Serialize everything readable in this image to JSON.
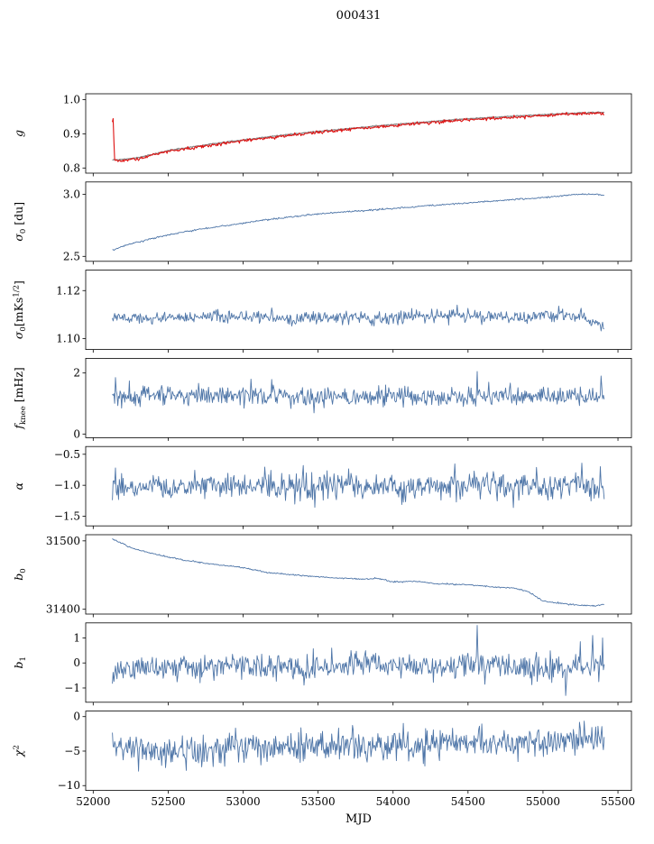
{
  "title": "000431",
  "xlabel": "MJD",
  "colors": {
    "line": "#4f76a8",
    "fit": "#dd1111",
    "model": "#8a8a8a",
    "axis": "#000000"
  },
  "x_axis": {
    "lim": [
      51950,
      55590
    ],
    "ticks": [
      52000,
      52500,
      53000,
      53500,
      54000,
      54500,
      55000,
      55500
    ]
  },
  "chart_data": [
    {
      "type": "line",
      "name": "g",
      "ylabel": "g",
      "ylabel_parts": [
        {
          "t": "g",
          "italic": true
        }
      ],
      "ylim": [
        0.785,
        1.017
      ],
      "yticks": [
        {
          "v": 1.0,
          "label": "1.0"
        },
        {
          "v": 0.9,
          "label": "0.9"
        },
        {
          "v": 0.8,
          "label": "0.8"
        }
      ],
      "series": [
        {
          "name": "model",
          "kind": "trend",
          "color": "#8a8a8a",
          "width": 1.3,
          "noise": 0.0008,
          "seed": 2,
          "points": [
            [
              52140,
              0.823
            ],
            [
              52300,
              0.83
            ],
            [
              52500,
              0.851
            ],
            [
              52800,
              0.871
            ],
            [
              53000,
              0.882
            ],
            [
              53300,
              0.898
            ],
            [
              53600,
              0.911
            ],
            [
              53900,
              0.923
            ],
            [
              54200,
              0.934
            ],
            [
              54500,
              0.944
            ],
            [
              54700,
              0.949
            ],
            [
              55000,
              0.956
            ],
            [
              55200,
              0.96
            ],
            [
              55380,
              0.963
            ],
            [
              55408,
              0.963
            ]
          ]
        },
        {
          "name": "fit",
          "kind": "trend",
          "color": "#dd1111",
          "width": 1.1,
          "noise": 0.0022,
          "seed": 7,
          "points": [
            [
              52128,
              0.93
            ],
            [
              52132,
              0.957
            ],
            [
              52137,
              0.9
            ],
            [
              52142,
              0.828
            ],
            [
              52160,
              0.821
            ],
            [
              52300,
              0.827
            ],
            [
              52500,
              0.848
            ],
            [
              52800,
              0.868
            ],
            [
              53000,
              0.879
            ],
            [
              53300,
              0.895
            ],
            [
              53600,
              0.908
            ],
            [
              53900,
              0.92
            ],
            [
              54200,
              0.931
            ],
            [
              54500,
              0.941
            ],
            [
              54700,
              0.946
            ],
            [
              55000,
              0.953
            ],
            [
              55200,
              0.958
            ],
            [
              55380,
              0.961
            ],
            [
              55408,
              0.954
            ]
          ]
        }
      ]
    },
    {
      "type": "line",
      "name": "sigma0-du",
      "ylabel": "σ0 [du]",
      "ylabel_parts": [
        {
          "t": "σ",
          "italic": true
        },
        {
          "t": "0",
          "sub": true
        },
        {
          "t": " [du]"
        }
      ],
      "ylim": [
        2.46,
        3.1
      ],
      "yticks": [
        {
          "v": 3.0,
          "label": "3.0"
        },
        {
          "v": 2.5,
          "label": "2.5"
        }
      ],
      "series": [
        {
          "name": "values",
          "kind": "trend",
          "color": "#4f76a8",
          "width": 0.9,
          "noise": 0.003,
          "seed": 3,
          "points": [
            [
              52128,
              2.553
            ],
            [
              52250,
              2.6
            ],
            [
              52400,
              2.645
            ],
            [
              52500,
              2.672
            ],
            [
              52700,
              2.718
            ],
            [
              52900,
              2.75
            ],
            [
              53100,
              2.785
            ],
            [
              53300,
              2.815
            ],
            [
              53500,
              2.843
            ],
            [
              53700,
              2.86
            ],
            [
              53900,
              2.877
            ],
            [
              54100,
              2.895
            ],
            [
              54300,
              2.915
            ],
            [
              54500,
              2.93
            ],
            [
              54700,
              2.95
            ],
            [
              54900,
              2.965
            ],
            [
              55100,
              2.985
            ],
            [
              55200,
              2.998
            ],
            [
              55300,
              3.003
            ],
            [
              55408,
              2.994
            ]
          ]
        }
      ]
    },
    {
      "type": "line",
      "name": "sigma0-mks",
      "ylabel": "σ0 [mK s^1/2]",
      "ylabel_parts": [
        {
          "t": "σ",
          "italic": true
        },
        {
          "t": "0",
          "sub": true
        },
        {
          "t": "[mKs"
        },
        {
          "t": "1/2",
          "sup": true
        },
        {
          "t": "]"
        }
      ],
      "ylim": [
        1.0955,
        1.1285
      ],
      "yticks": [
        {
          "v": 1.12,
          "label": "1.12"
        },
        {
          "v": 1.1,
          "label": "1.10"
        }
      ],
      "series": [
        {
          "name": "values",
          "kind": "noise",
          "color": "#4f76a8",
          "width": 0.9,
          "std": 0.0013,
          "wander": 0.0009,
          "seed": 5,
          "base": [
            [
              52128,
              1.1082
            ],
            [
              52400,
              1.109
            ],
            [
              52700,
              1.1086
            ],
            [
              53000,
              1.1088
            ],
            [
              53300,
              1.109
            ],
            [
              53600,
              1.1088
            ],
            [
              54000,
              1.1092
            ],
            [
              54400,
              1.109
            ],
            [
              54800,
              1.1092
            ],
            [
              55100,
              1.1096
            ],
            [
              55250,
              1.1097
            ],
            [
              55330,
              1.1075
            ],
            [
              55408,
              1.1048
            ]
          ],
          "spikes": []
        }
      ]
    },
    {
      "type": "line",
      "name": "f-knee",
      "ylabel": "f_knee [mHz]",
      "ylabel_parts": [
        {
          "t": "f",
          "italic": true
        },
        {
          "t": "knee",
          "sub": true
        },
        {
          "t": " [mHz]"
        }
      ],
      "ylim": [
        -0.12,
        2.48
      ],
      "yticks": [
        {
          "v": 2,
          "label": "2"
        },
        {
          "v": 0,
          "label": "0"
        }
      ],
      "series": [
        {
          "name": "values",
          "kind": "noise",
          "color": "#4f76a8",
          "width": 0.9,
          "std": 0.16,
          "wander": 0.04,
          "seed": 9,
          "base": [
            [
              52128,
              1.22
            ],
            [
              53000,
              1.24
            ],
            [
              54000,
              1.25
            ],
            [
              55000,
              1.24
            ],
            [
              55408,
              1.25
            ]
          ],
          "spikes": [
            [
              52150,
              1.85
            ],
            [
              53050,
              1.8
            ],
            [
              54560,
              2.05
            ],
            [
              55390,
              1.9
            ]
          ]
        }
      ]
    },
    {
      "type": "line",
      "name": "alpha",
      "ylabel": "α",
      "ylabel_parts": [
        {
          "t": "α",
          "italic": true
        }
      ],
      "ylim": [
        -1.655,
        -0.375
      ],
      "yticks": [
        {
          "v": -0.5,
          "label": "−0.5"
        },
        {
          "v": -1.0,
          "label": "−1.0"
        },
        {
          "v": -1.5,
          "label": "−1.5"
        }
      ],
      "series": [
        {
          "name": "values",
          "kind": "noise",
          "color": "#4f76a8",
          "width": 0.9,
          "std": 0.11,
          "wander": 0.02,
          "seed": 13,
          "base": [
            [
              52128,
              -1.02
            ],
            [
              53000,
              -1.01
            ],
            [
              54000,
              -1.0
            ],
            [
              55000,
              -1.02
            ],
            [
              55408,
              -1.0
            ]
          ],
          "spikes": [
            [
              52150,
              -0.72
            ],
            [
              53400,
              -0.68
            ],
            [
              54800,
              -1.36
            ],
            [
              55380,
              -0.7
            ]
          ]
        }
      ]
    },
    {
      "type": "line",
      "name": "b0",
      "ylabel": "b_0",
      "ylabel_parts": [
        {
          "t": "b",
          "italic": true
        },
        {
          "t": "0",
          "sub": true
        }
      ],
      "ylim": [
        31393,
        31509
      ],
      "yticks": [
        {
          "v": 31500,
          "label": "31500"
        },
        {
          "v": 31400,
          "label": "31400"
        }
      ],
      "series": [
        {
          "name": "values",
          "kind": "trend",
          "color": "#4f76a8",
          "width": 0.9,
          "noise": 0.5,
          "seed": 17,
          "points": [
            [
              52128,
              31503
            ],
            [
              52250,
              31490
            ],
            [
              52400,
              31481
            ],
            [
              52600,
              31472
            ],
            [
              52800,
              31466
            ],
            [
              53000,
              31461
            ],
            [
              53150,
              31454
            ],
            [
              53400,
              31449
            ],
            [
              53600,
              31446
            ],
            [
              53800,
              31444
            ],
            [
              53900,
              31445
            ],
            [
              54000,
              31440
            ],
            [
              54150,
              31441
            ],
            [
              54300,
              31437
            ],
            [
              54500,
              31436
            ],
            [
              54650,
              31433
            ],
            [
              54800,
              31431
            ],
            [
              54900,
              31426
            ],
            [
              55000,
              31412
            ],
            [
              55100,
              31409
            ],
            [
              55250,
              31406
            ],
            [
              55350,
              31405
            ],
            [
              55408,
              31407
            ]
          ]
        }
      ]
    },
    {
      "type": "line",
      "name": "b1",
      "ylabel": "b_1",
      "ylabel_parts": [
        {
          "t": "b",
          "italic": true
        },
        {
          "t": "1",
          "sub": true
        }
      ],
      "ylim": [
        -1.57,
        1.6
      ],
      "yticks": [
        {
          "v": 1,
          "label": "1"
        },
        {
          "v": 0,
          "label": "0"
        },
        {
          "v": -1,
          "label": "−1"
        }
      ],
      "series": [
        {
          "name": "values",
          "kind": "noise",
          "color": "#4f76a8",
          "width": 0.9,
          "std": 0.24,
          "wander": 0.05,
          "seed": 21,
          "base": [
            [
              52128,
              -0.25
            ],
            [
              52500,
              -0.18
            ],
            [
              53000,
              -0.17
            ],
            [
              53500,
              -0.15
            ],
            [
              53800,
              -0.05
            ],
            [
              54100,
              -0.12
            ],
            [
              54500,
              -0.12
            ],
            [
              55000,
              -0.15
            ],
            [
              55408,
              -0.05
            ]
          ],
          "spikes": [
            [
              54560,
              1.5
            ],
            [
              54610,
              -0.85
            ],
            [
              55150,
              -1.3
            ],
            [
              55250,
              0.85
            ],
            [
              55330,
              1.1
            ],
            [
              55370,
              -0.75
            ],
            [
              55400,
              1.0
            ]
          ]
        }
      ]
    },
    {
      "type": "line",
      "name": "chi2",
      "ylabel": "χ^2",
      "ylabel_parts": [
        {
          "t": "χ",
          "italic": true
        },
        {
          "t": "2",
          "sup": true
        }
      ],
      "ylim": [
        -10.7,
        0.8
      ],
      "yticks": [
        {
          "v": 0,
          "label": "0"
        },
        {
          "v": -5,
          "label": "−5"
        },
        {
          "v": -10,
          "label": "−10"
        }
      ],
      "series": [
        {
          "name": "values",
          "kind": "noise",
          "color": "#4f76a8",
          "width": 0.9,
          "std": 1.1,
          "wander": 0.25,
          "seed": 25,
          "base": [
            [
              52128,
              -3.6
            ],
            [
              52300,
              -4.9
            ],
            [
              52600,
              -4.6
            ],
            [
              53000,
              -4.3
            ],
            [
              53500,
              -4.2
            ],
            [
              54000,
              -4.1
            ],
            [
              54500,
              -3.8
            ],
            [
              55000,
              -3.6
            ],
            [
              55408,
              -3.4
            ]
          ],
          "spikes": [
            [
              52300,
              -7.9
            ],
            [
              52480,
              -7.4
            ],
            [
              52620,
              -7.8
            ],
            [
              53120,
              -7.0
            ],
            [
              54200,
              -6.8
            ],
            [
              55350,
              -1.5
            ]
          ]
        }
      ]
    }
  ]
}
